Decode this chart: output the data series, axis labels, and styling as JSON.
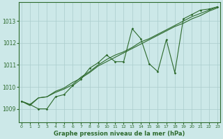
{
  "title": "Graphe pression niveau de la mer (hPa)",
  "bg_color": "#cce8e8",
  "line_color": "#2d6a2d",
  "grid_color": "#aacccc",
  "x_ticks": [
    0,
    1,
    2,
    3,
    4,
    5,
    6,
    7,
    8,
    9,
    10,
    11,
    12,
    13,
    14,
    15,
    16,
    17,
    18,
    19,
    20,
    21,
    22,
    23
  ],
  "y_ticks": [
    1009,
    1010,
    1011,
    1012,
    1013
  ],
  "ylim": [
    1008.4,
    1013.85
  ],
  "xlim": [
    -0.3,
    23.3
  ],
  "line1": [
    1009.35,
    1009.2,
    1009.5,
    1009.55,
    1009.8,
    1009.95,
    1010.2,
    1010.4,
    1010.65,
    1010.95,
    1011.15,
    1011.35,
    1011.55,
    1011.75,
    1011.95,
    1012.15,
    1012.35,
    1012.55,
    1012.75,
    1012.9,
    1013.1,
    1013.25,
    1013.45,
    1013.6
  ],
  "line2": [
    1009.35,
    1009.2,
    1009.0,
    1009.0,
    1009.55,
    1009.65,
    1010.05,
    1010.35,
    1010.85,
    1011.1,
    1011.45,
    1011.15,
    1011.15,
    1012.65,
    1012.2,
    1011.05,
    1010.7,
    1012.15,
    1010.65,
    1013.1,
    1013.3,
    1013.5,
    1013.55,
    1013.65
  ],
  "line3": [
    1009.35,
    1009.15,
    1009.5,
    1009.55,
    1009.75,
    1009.9,
    1010.1,
    1010.45,
    1010.7,
    1011.0,
    1011.25,
    1011.45,
    1011.6,
    1011.8,
    1012.05,
    1012.2,
    1012.4,
    1012.6,
    1012.8,
    1013.0,
    1013.2,
    1013.35,
    1013.5,
    1013.65
  ]
}
